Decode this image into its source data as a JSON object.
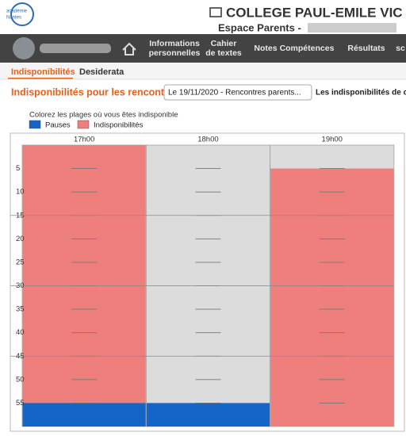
{
  "header": {
    "logo": [
      "académie",
      "Nantes"
    ],
    "title": "COLLEGE PAUL-EMILE VIC",
    "subtitle": "Espace Parents -"
  },
  "nav": {
    "items": [
      [
        "Informations",
        "personnelles"
      ],
      [
        "Cahier",
        "de textes"
      ],
      [
        "Notes"
      ],
      [
        "Compétences"
      ],
      [
        "Résultats"
      ],
      [
        "sc"
      ]
    ]
  },
  "tabs": [
    "Indisponibilités",
    "Desiderata"
  ],
  "toolbar": {
    "label": "Indisponibilités pour les rencontres",
    "select": "Le 19/11/2020 - Rencontres parents...",
    "note": "Les indisponibilités de ce"
  },
  "legend": {
    "hint": "Colorez les plages où vous êtes indisponible",
    "items": [
      {
        "name": "Pauses",
        "color": "#1565c8"
      },
      {
        "name": "Indisponibilités",
        "color": "#ef7f7c"
      }
    ]
  },
  "schedule": {
    "range": [
      0,
      60
    ],
    "minute_labels": [
      5,
      10,
      15,
      20,
      25,
      30,
      35,
      40,
      45,
      50,
      55
    ],
    "columns": [
      {
        "label": "17h00",
        "blocks": [
          {
            "start": 0,
            "end": 55,
            "kind": 1
          },
          {
            "start": 55,
            "end": 60,
            "kind": 0
          }
        ]
      },
      {
        "label": "18h00",
        "blocks": [
          {
            "start": 55,
            "end": 60,
            "kind": 0
          }
        ]
      },
      {
        "label": "19h00",
        "blocks": [
          {
            "start": 5,
            "end": 60,
            "kind": 1
          }
        ]
      }
    ]
  }
}
